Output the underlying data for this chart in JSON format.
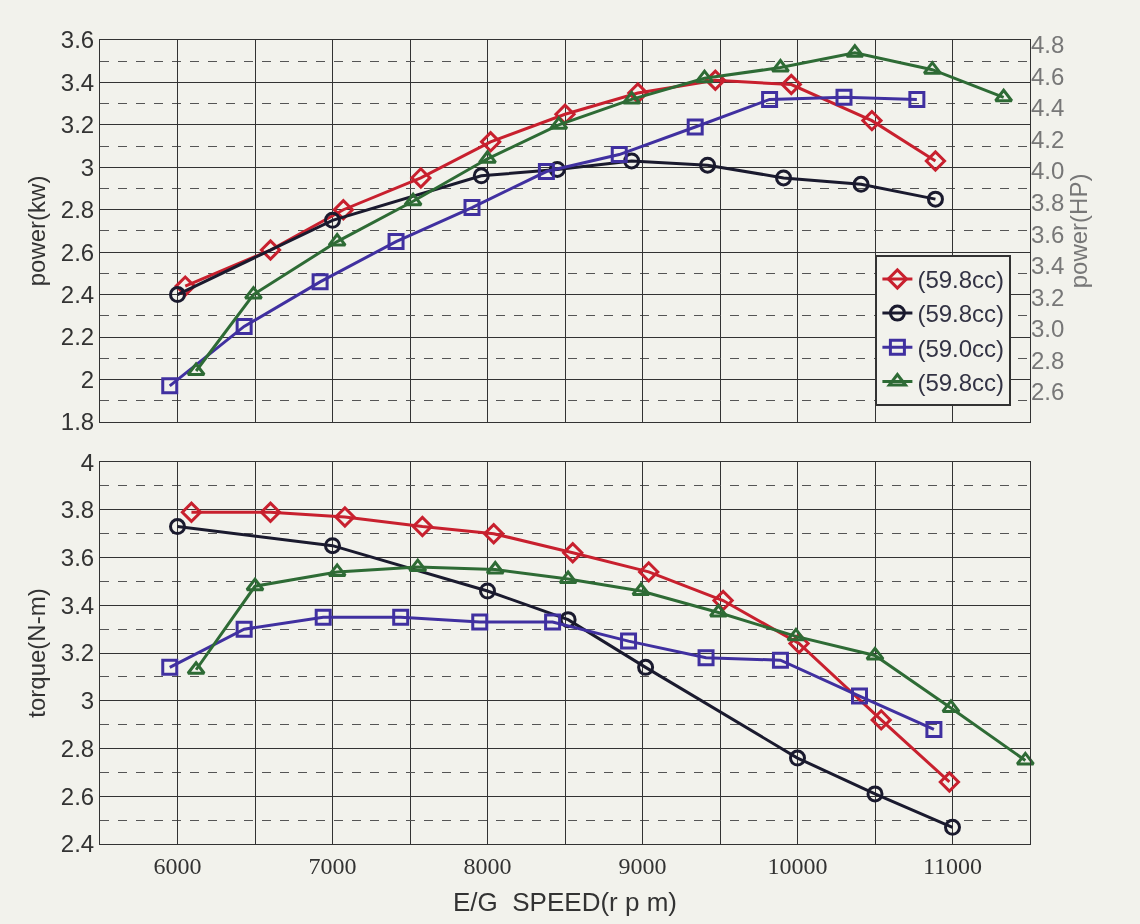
{
  "chart_data": [
    {
      "type": "line",
      "ylabel": "power(kw)",
      "y2label": "power(HP)",
      "xlim": [
        5500,
        11500
      ],
      "xticks": [
        6000,
        7000,
        8000,
        9000,
        10000,
        11000
      ],
      "ylim": [
        1.8,
        3.6
      ],
      "yticks": [
        1.8,
        2,
        2.2,
        2.4,
        2.6,
        2.8,
        3,
        3.2,
        3.4,
        3.6
      ],
      "y2lim": [
        2.41,
        4.83
      ],
      "y2ticks": [
        2.6,
        2.8,
        {
          "value": 3.0,
          "label": "3.0"
        },
        3.2,
        3.4,
        3.6,
        3.8,
        {
          "value": 4.0,
          "label": "4.0"
        },
        4.2,
        4.4,
        4.6,
        4.8
      ],
      "grid": true,
      "legend": "bottom right",
      "tick_labels": "y",
      "line_style": "solid",
      "series": [
        {
          "name": "(59.8cc)",
          "color": "#c8202e",
          "marker": "diamond",
          "x": [
            6050,
            6600,
            7070,
            7570,
            8020,
            8500,
            8970,
            9470,
            9960,
            10480,
            10890
          ],
          "values": [
            2.44,
            2.61,
            2.8,
            2.95,
            3.12,
            3.25,
            3.35,
            3.41,
            3.39,
            3.22,
            3.03
          ]
        },
        {
          "name": "(59.8cc)",
          "color": "#1a1a2e",
          "marker": "circle",
          "x": [
            6000,
            7000,
            7960,
            8450,
            8930,
            9420,
            9910,
            10410,
            10890
          ],
          "values": [
            2.4,
            2.75,
            2.96,
            2.99,
            3.03,
            3.01,
            2.95,
            2.92,
            2.85
          ]
        },
        {
          "name": "(59.0cc)",
          "color": "#4030a0",
          "marker": "square",
          "x": [
            5950,
            6430,
            6920,
            7410,
            7900,
            8380,
            8850,
            9340,
            9820,
            10300,
            10770
          ],
          "values": [
            1.97,
            2.25,
            2.46,
            2.65,
            2.81,
            2.98,
            3.06,
            3.19,
            3.32,
            3.33,
            3.32
          ]
        },
        {
          "name": "(59.8cc)",
          "color": "#2e6b35",
          "marker": "triangle",
          "x": [
            6120,
            6490,
            7030,
            7520,
            8000,
            8460,
            8930,
            9400,
            9890,
            10370,
            10870,
            11330
          ],
          "values": [
            2.04,
            2.4,
            2.65,
            2.84,
            3.04,
            3.2,
            3.32,
            3.42,
            3.47,
            3.54,
            3.46,
            3.33
          ]
        }
      ]
    },
    {
      "type": "line",
      "ylabel": "torque(N-m)",
      "xlabel": "E/G  SPEED(r p m)",
      "xlim": [
        5500,
        11500
      ],
      "xticks": [
        6000,
        7000,
        8000,
        9000,
        10000,
        11000
      ],
      "ylim": [
        2.4,
        4.0
      ],
      "yticks": [
        2.4,
        2.6,
        2.8,
        3,
        3.2,
        3.4,
        3.6,
        3.8,
        4
      ],
      "grid": true,
      "line_style": "solid",
      "series": [
        {
          "color": "#c8202e",
          "marker": "diamond",
          "x": [
            6090,
            6600,
            7080,
            7580,
            8040,
            8550,
            9040,
            9520,
            10010,
            10540,
            10980
          ],
          "values": [
            3.79,
            3.79,
            3.77,
            3.73,
            3.7,
            3.62,
            3.54,
            3.42,
            3.24,
            2.92,
            2.66
          ]
        },
        {
          "color": "#1a1a2e",
          "marker": "circle",
          "x": [
            6000,
            7000,
            8000,
            8520,
            9020,
            10000,
            10500,
            11000
          ],
          "values": [
            3.73,
            3.65,
            3.46,
            3.34,
            3.14,
            2.76,
            2.61,
            2.47
          ]
        },
        {
          "color": "#4030a0",
          "marker": "square",
          "x": [
            5950,
            6430,
            6940,
            7440,
            7950,
            8420,
            8910,
            9410,
            9890,
            10400,
            10880
          ],
          "values": [
            3.14,
            3.3,
            3.35,
            3.35,
            3.33,
            3.33,
            3.25,
            3.18,
            3.17,
            3.02,
            2.88
          ]
        },
        {
          "color": "#2e6b35",
          "marker": "triangle",
          "x": [
            6120,
            6500,
            7030,
            7550,
            8050,
            8520,
            8990,
            9490,
            9990,
            10500,
            10990,
            11470
          ],
          "values": [
            3.13,
            3.48,
            3.54,
            3.56,
            3.55,
            3.51,
            3.46,
            3.37,
            3.27,
            3.19,
            2.97,
            2.75
          ]
        }
      ]
    }
  ]
}
